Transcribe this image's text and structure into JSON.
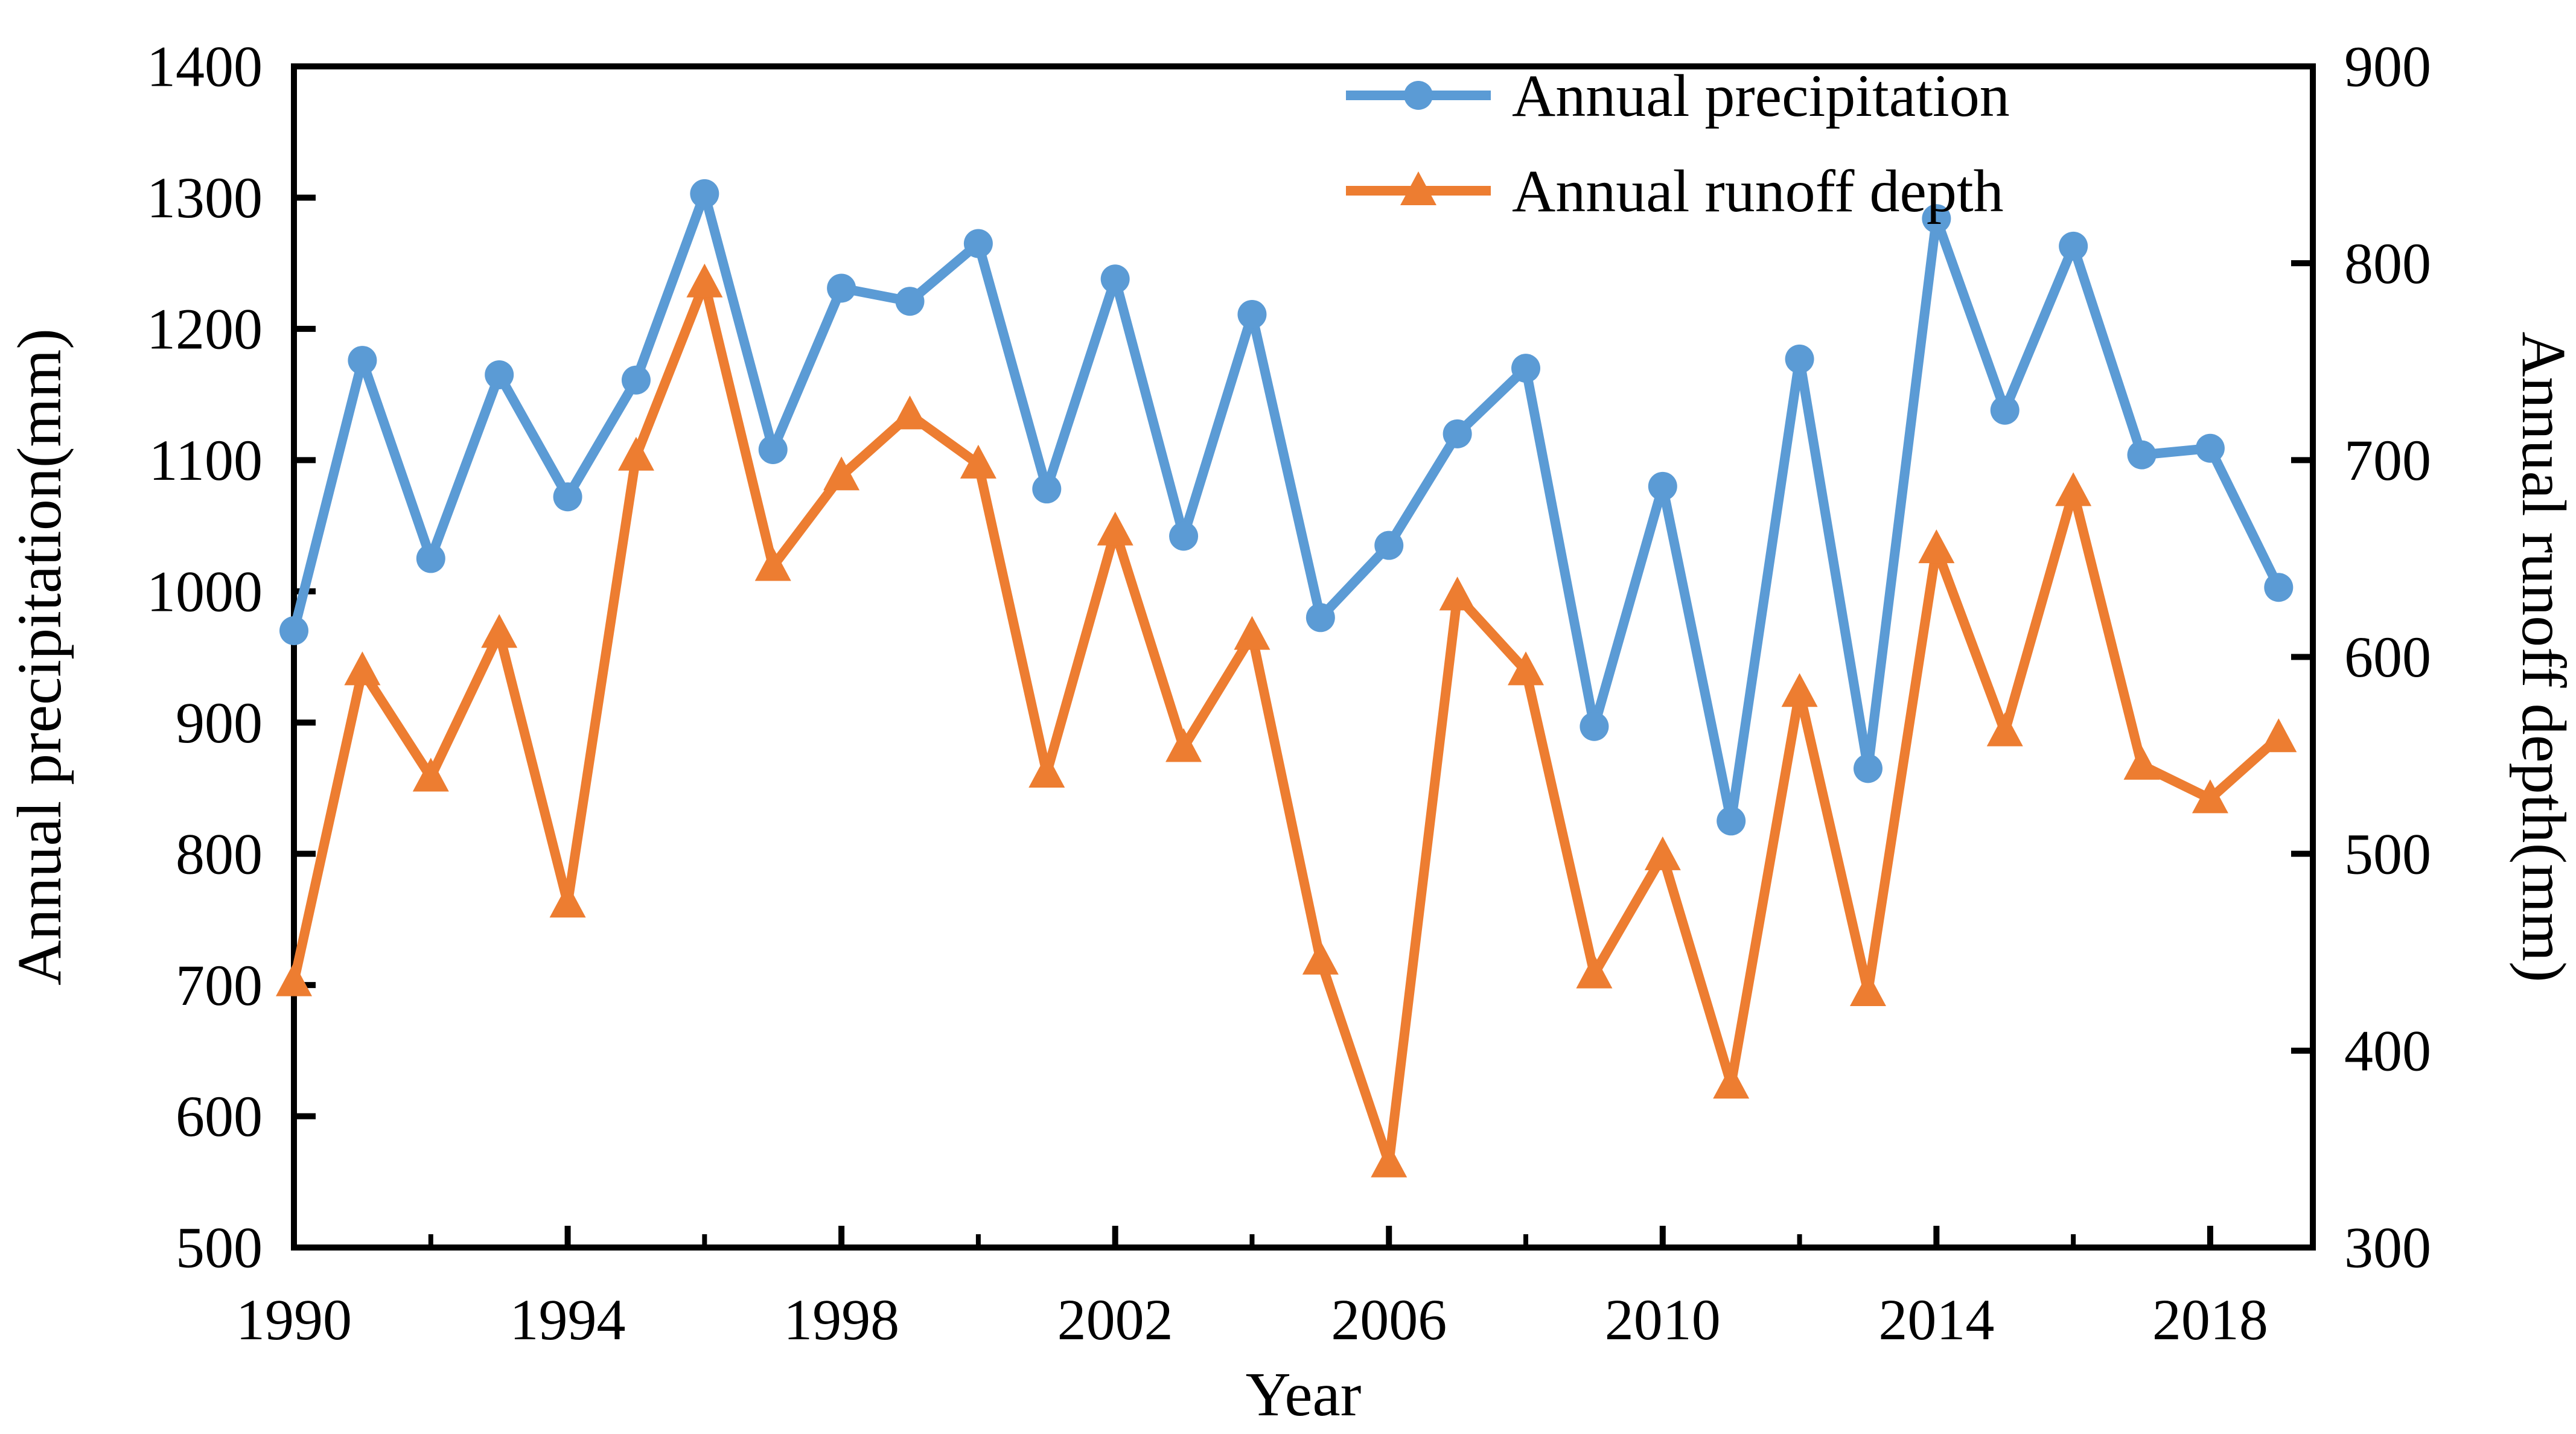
{
  "figure": {
    "background": "#ffffff",
    "axis_color": "#000000"
  },
  "chart_data": {
    "type": "line",
    "title": "",
    "xlabel": "Year",
    "ylabel_left": "Annual precipitation(mm)",
    "ylabel_right": "Annual runoff depth(mm)",
    "xlim": [
      1990,
      2019.5
    ],
    "ylim_left": [
      500,
      1400
    ],
    "ylim_right": [
      300,
      900
    ],
    "xticks_major": [
      1990,
      1994,
      1998,
      2002,
      2006,
      2010,
      2014,
      2018
    ],
    "xticks_minor": [
      1992,
      1996,
      2000,
      2004,
      2008,
      2012,
      2016,
      2018
    ],
    "yticks_left": [
      500,
      600,
      700,
      800,
      900,
      1000,
      1100,
      1200,
      1300,
      1400
    ],
    "yticks_right": [
      300,
      400,
      500,
      600,
      700,
      800,
      900
    ],
    "grid": false,
    "legend_position": "top-center",
    "x": [
      1990,
      1991,
      1992,
      1993,
      1994,
      1995,
      1996,
      1997,
      1998,
      1999,
      2000,
      2001,
      2002,
      2003,
      2004,
      2005,
      2006,
      2007,
      2008,
      2009,
      2010,
      2011,
      2012,
      2013,
      2014,
      2015,
      2016,
      2017,
      2018,
      2019
    ],
    "series": [
      {
        "name": "Annual precipitation",
        "axis": "left",
        "color": "#5B9BD5",
        "marker": "circle",
        "values": [
          970,
          1176,
          1025,
          1165,
          1072,
          1161,
          1303,
          1108,
          1231,
          1221,
          1265,
          1078,
          1238,
          1042,
          1211,
          980,
          1035,
          1120,
          1170,
          897,
          1080,
          825,
          1177,
          865,
          1284,
          1138,
          1263,
          1104,
          1109,
          1003
        ]
      },
      {
        "name": "Annual runoff depth",
        "axis": "right",
        "color": "#ED7D31",
        "marker": "triangle-up",
        "values": [
          435,
          593,
          539,
          612,
          475,
          702,
          790,
          646,
          692,
          723,
          698,
          541,
          664,
          554,
          611,
          446,
          343,
          631,
          593,
          439,
          499,
          383,
          582,
          430,
          655,
          562,
          684,
          545,
          528,
          559
        ]
      }
    ]
  }
}
